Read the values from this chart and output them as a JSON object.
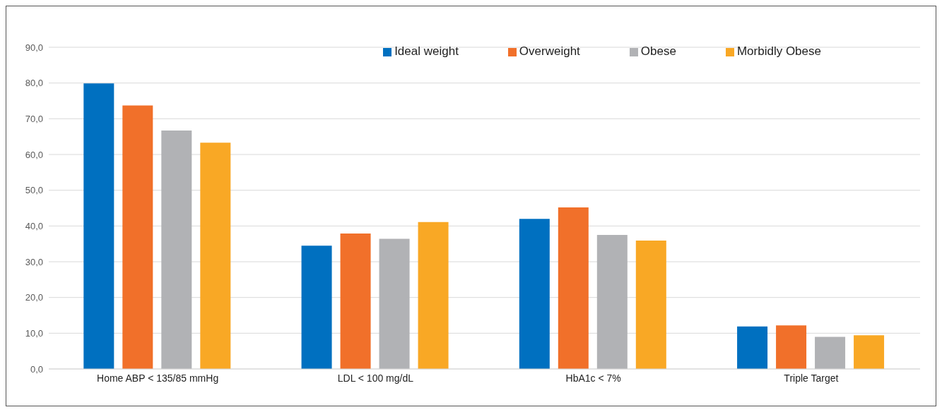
{
  "chart_data": {
    "type": "bar",
    "categories": [
      "Home ABP < 135/85 mmHg",
      "LDL < 100 mg/dL",
      "HbA1c < 7%",
      "Triple Target"
    ],
    "series": [
      {
        "name": "Ideal weight",
        "color": "#0070c0",
        "values": [
          79.9,
          34.5,
          42.0,
          11.9
        ]
      },
      {
        "name": "Overweight",
        "color": "#f1702a",
        "values": [
          73.7,
          37.9,
          45.2,
          12.2
        ]
      },
      {
        "name": "Obese",
        "color": "#b1b2b5",
        "values": [
          66.7,
          36.4,
          37.5,
          9.0
        ]
      },
      {
        "name": "Morbidly Obese",
        "color": "#f9a825",
        "values": [
          63.3,
          41.1,
          35.9,
          9.4
        ]
      }
    ],
    "ylim": [
      0,
      90
    ],
    "yticks": [
      {
        "value": 0,
        "label": "0,0"
      },
      {
        "value": 10,
        "label": "10,0"
      },
      {
        "value": 20,
        "label": "20,0"
      },
      {
        "value": 30,
        "label": "30,0"
      },
      {
        "value": 40,
        "label": "40,0"
      },
      {
        "value": 50,
        "label": "50,0"
      },
      {
        "value": 60,
        "label": "60,0"
      },
      {
        "value": 70,
        "label": "70,0"
      },
      {
        "value": 80,
        "label": "80,0"
      },
      {
        "value": 90,
        "label": "90,0"
      }
    ],
    "grid": "y",
    "legend": "top right"
  }
}
